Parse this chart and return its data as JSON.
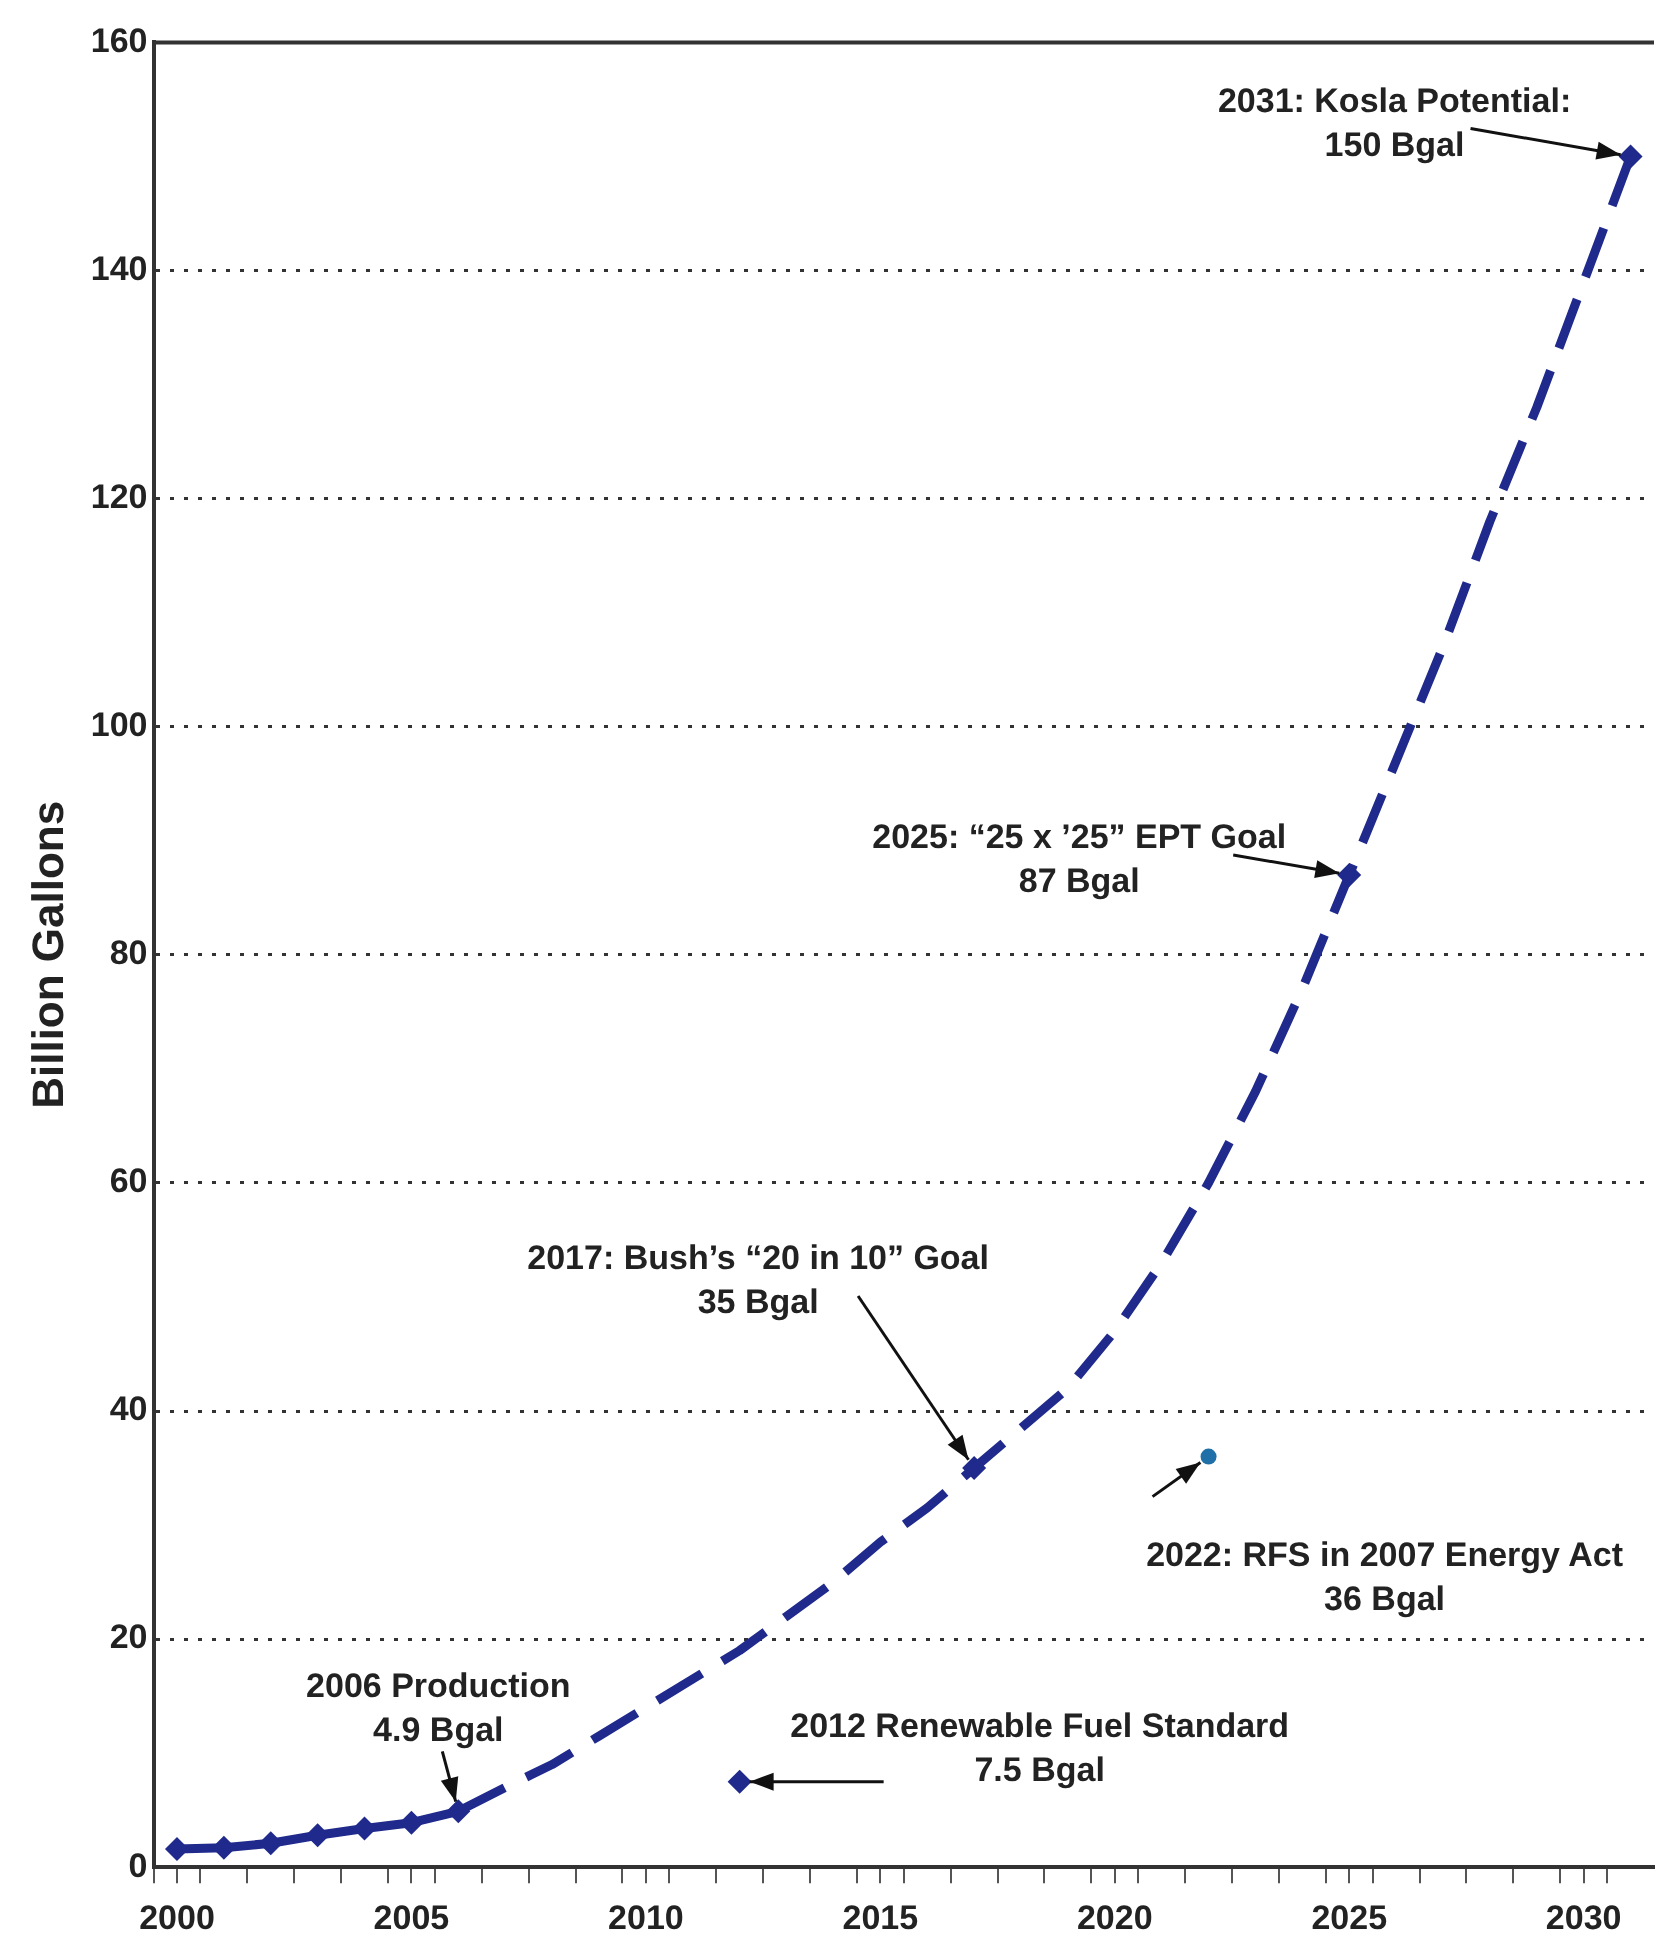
{
  "chart_data": {
    "type": "line",
    "ylabel": "Billion Gallons",
    "xlim": [
      1999.5,
      2031.5
    ],
    "xticks": [
      {
        "value": 1999.5,
        "label": null
      },
      2000,
      {
        "value": 2000.5,
        "label": null
      },
      {
        "value": 2001.5,
        "label": null
      },
      {
        "value": 2002.5,
        "label": null
      },
      {
        "value": 2003.5,
        "label": null
      },
      {
        "value": 2004.5,
        "label": null
      },
      2005,
      {
        "value": 2005.5,
        "label": null
      },
      {
        "value": 2006.5,
        "label": null
      },
      {
        "value": 2007.5,
        "label": null
      },
      {
        "value": 2008.5,
        "label": null
      },
      {
        "value": 2009.5,
        "label": null
      },
      2010,
      {
        "value": 2010.5,
        "label": null
      },
      {
        "value": 2011.5,
        "label": null
      },
      {
        "value": 2012.5,
        "label": null
      },
      {
        "value": 2013.5,
        "label": null
      },
      {
        "value": 2014.5,
        "label": null
      },
      2015,
      {
        "value": 2015.5,
        "label": null
      },
      {
        "value": 2016.5,
        "label": null
      },
      {
        "value": 2017.5,
        "label": null
      },
      {
        "value": 2018.5,
        "label": null
      },
      {
        "value": 2019.5,
        "label": null
      },
      2020,
      {
        "value": 2020.5,
        "label": null
      },
      {
        "value": 2021.5,
        "label": null
      },
      {
        "value": 2022.5,
        "label": null
      },
      {
        "value": 2023.5,
        "label": null
      },
      {
        "value": 2024.5,
        "label": null
      },
      2025,
      {
        "value": 2025.5,
        "label": null
      },
      {
        "value": 2026.5,
        "label": null
      },
      {
        "value": 2027.5,
        "label": null
      },
      {
        "value": 2028.5,
        "label": null
      },
      {
        "value": 2029.5,
        "label": null
      },
      2030,
      {
        "value": 2030.5,
        "label": null
      }
    ],
    "ylim": [
      0,
      160
    ],
    "yticks": [
      0,
      20,
      40,
      60,
      80,
      100,
      120,
      140,
      160
    ],
    "grid": "y",
    "legend": false,
    "series": [
      {
        "color": "#1f2a8c",
        "marker": "diamond",
        "line_style": "solid",
        "x": [
          2000,
          2001,
          2002,
          2003,
          2004,
          2005,
          2006
        ],
        "values": [
          1.6,
          1.7,
          2.1,
          2.8,
          3.4,
          3.9,
          4.9
        ]
      },
      {
        "color": "#1f2a8c",
        "marker": "none",
        "line_style": "dashed",
        "x": [
          2006,
          2007,
          2008,
          2009,
          2010,
          2011,
          2012,
          2013,
          2014,
          2015,
          2016,
          2017,
          2018,
          2019,
          2020,
          2021,
          2022,
          2023,
          2024,
          2025,
          2026,
          2027,
          2028,
          2029,
          2030,
          2031
        ],
        "values": [
          4.9,
          7,
          9,
          11.5,
          14,
          16.5,
          19,
          22,
          25,
          28.5,
          31.5,
          35,
          38.5,
          42,
          47,
          53,
          60,
          68,
          77,
          87,
          97,
          107,
          118,
          128,
          139,
          150
        ]
      },
      {
        "type": "scatter",
        "color": "#1f2a8c",
        "marker": "diamond",
        "x": [
          2017,
          2025,
          2031
        ],
        "values": [
          35,
          87,
          150
        ]
      },
      {
        "type": "scatter",
        "color": "#1f2a8c",
        "marker": "diamond",
        "x": [
          2012
        ],
        "values": [
          7.5
        ]
      },
      {
        "type": "scatter",
        "color": "#1f6fa8",
        "marker": "circle",
        "x": [
          2022
        ],
        "values": [
          36
        ]
      }
    ],
    "annotations": [
      {
        "text": "2031: Kosla Potential:\n150 Bgal",
        "x": 2031,
        "y": 150
      },
      {
        "text": "2025: “25 x ’25” EPT Goal\n87 Bgal",
        "x": 2025,
        "y": 87
      },
      {
        "text": "2017: Bush’s “20 in 10” Goal\n35 Bgal",
        "x": 2017,
        "y": 35
      },
      {
        "text": "2022: RFS in 2007 Energy Act\n36 Bgal",
        "x": 2022,
        "y": 36
      },
      {
        "text": "2012 Renewable Fuel Standard\n7.5 Bgal",
        "x": 2012,
        "y": 7.5
      },
      {
        "text": "2006 Production\n4.9 Bgal",
        "x": 2006,
        "y": 4.9
      }
    ]
  }
}
